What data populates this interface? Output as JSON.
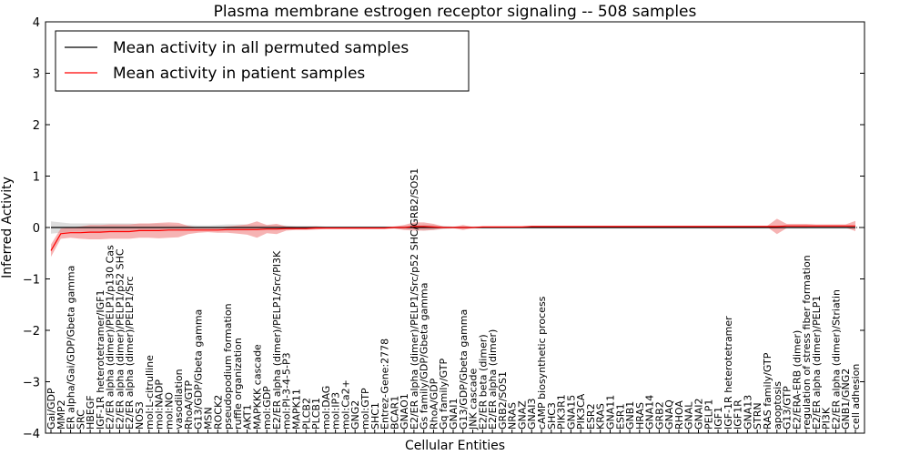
{
  "chart_data": {
    "type": "line",
    "title": "Plasma membrane estrogen receptor signaling -- 508 samples",
    "xlabel": "Cellular Entities",
    "ylabel": "Inferred Activity",
    "ylim": [
      -4,
      4
    ],
    "yticks": [
      -4,
      -3,
      -2,
      -1,
      0,
      1,
      2,
      3,
      4
    ],
    "ytick_labels": [
      "−4",
      "−3",
      "−2",
      "−1",
      "0",
      "1",
      "2",
      "3",
      "4"
    ],
    "grid": false,
    "legend_position": "top-left",
    "reference_line_y": 0,
    "categories": [
      "Gai/GDP",
      "MMP2",
      "ER alpha/Gai/GDP/Gbeta gamma",
      "SRC",
      "HBEGF",
      "IGF-1R heterotetramer/IGF1",
      "E2/ER alpha (dimer)/PELP1/p130 Cas",
      "E2/ER alpha (dimer)/PELP1/p52 SHC",
      "E2/ER alpha (dimer)/PELP1/Src",
      "NOS3",
      "mol:L-citrulline",
      "mol:NADP",
      "mol:NO",
      "vasodilation",
      "RhoA/GTP",
      "G13/GDP/Gbeta gamma",
      "MSN",
      "ROCK2",
      "pseudopodium formation",
      "ruffle organization",
      "AKT1",
      "MAPKKK cascade",
      "mol:GDP",
      "E2/ER alpha (dimer)/PELP1/Src/PI3K",
      "mol:PI-3-4-5-P3",
      "MAPK11",
      "PLCB2",
      "PLCB1",
      "mol:DAG",
      "mol:IP3",
      "mol:Ca2+",
      "GNG2",
      "mol:GTP",
      "SHC1",
      "Entrez-Gene:2778",
      "BCAR1",
      "GNAO1",
      "E2/ER alpha (dimer)/PELP1/Src/p52 SHC/GRB2/SOS1",
      "Gs family/GDP/Gbeta gamma",
      "RhoA/GDP",
      "Gq family/GTP",
      "GNAI1",
      "G13/GDP/Gbeta gamma",
      "JNK cascade",
      "E2/ER beta (dimer)",
      "E2/ER alpha (dimer)",
      "GRB2/SOS1",
      "NRAS",
      "GNAZ",
      "GNAI3",
      "cAMP biosynthetic process",
      "SHC3",
      "PIK3R1",
      "GNA15",
      "PIK3CA",
      "ESR2",
      "KRAS",
      "GNA11",
      "ESR1",
      "GNB1",
      "HRAS",
      "GNA14",
      "GRB2",
      "GNAQ",
      "RHOA",
      "GNAL",
      "GNAI2",
      "PELP1",
      "IGF1",
      "IGF-1R heterotetramer",
      "IGF1R",
      "GNA13",
      "STRN",
      "RAS family/GTP",
      "apoptosis",
      "G13/GTP",
      "E2/ERA-ERB (dimer)",
      "regulation of stress fiber formation",
      "E2/ER alpha (dimer)/PELP1",
      "PI3K",
      "E2/ER alpha (dimer)/Striatin",
      "GNB1/GNG2",
      "cell adhesion"
    ],
    "series": [
      {
        "name": "Mean activity in all permuted samples",
        "color": "#000000",
        "values": [
          0.0,
          0.0,
          0.0,
          0.0,
          0.0,
          0.0,
          0.0,
          0.0,
          0.0,
          0.0,
          0.0,
          0.0,
          0.0,
          0.0,
          0.0,
          0.0,
          0.0,
          0.0,
          0.0,
          0.0,
          0.0,
          0.0,
          0.0,
          0.0,
          0.0,
          0.0,
          0.0,
          0.0,
          0.0,
          0.0,
          0.0,
          0.0,
          0.0,
          0.0,
          0.0,
          0.0,
          0.0,
          0.0,
          0.0,
          0.0,
          0.0,
          0.0,
          0.0,
          0.0,
          0.0,
          0.0,
          0.0,
          0.0,
          0.0,
          0.0,
          0.0,
          0.0,
          0.0,
          0.0,
          0.0,
          0.0,
          0.0,
          0.0,
          0.0,
          0.0,
          0.0,
          0.0,
          0.0,
          0.0,
          0.0,
          0.0,
          0.0,
          0.0,
          0.0,
          0.0,
          0.0,
          0.0,
          0.0,
          0.0,
          0.0,
          0.0,
          0.0,
          0.0,
          0.0,
          0.0,
          0.0,
          0.0,
          0.0
        ],
        "band_halfwidth": [
          0.12,
          0.1,
          0.08,
          0.08,
          0.08,
          0.08,
          0.08,
          0.08,
          0.08,
          0.07,
          0.07,
          0.07,
          0.06,
          0.05,
          0.05,
          0.04,
          0.04,
          0.05,
          0.06,
          0.06,
          0.06,
          0.05,
          0.05,
          0.05,
          0.04,
          0.03,
          0.03,
          0.03,
          0.02,
          0.02,
          0.02,
          0.02,
          0.02,
          0.02,
          0.02,
          0.02,
          0.03,
          0.04,
          0.06,
          0.05,
          0.03,
          0.02,
          0.02,
          0.02,
          0.02,
          0.02,
          0.02,
          0.02,
          0.02,
          0.02,
          0.02,
          0.02,
          0.02,
          0.02,
          0.02,
          0.02,
          0.02,
          0.02,
          0.02,
          0.02,
          0.02,
          0.02,
          0.02,
          0.02,
          0.02,
          0.02,
          0.02,
          0.02,
          0.02,
          0.02,
          0.02,
          0.02,
          0.02,
          0.02,
          0.02,
          0.02,
          0.02,
          0.02,
          0.02,
          0.02,
          0.02,
          0.02,
          0.03
        ]
      },
      {
        "name": "Mean activity in patient samples",
        "color": "#ff0000",
        "values": [
          -0.45,
          -0.12,
          -0.1,
          -0.1,
          -0.09,
          -0.09,
          -0.08,
          -0.08,
          -0.08,
          -0.06,
          -0.06,
          -0.06,
          -0.05,
          -0.05,
          -0.05,
          -0.05,
          -0.05,
          -0.05,
          -0.04,
          -0.04,
          -0.04,
          -0.04,
          -0.03,
          -0.03,
          -0.02,
          -0.02,
          -0.02,
          -0.01,
          -0.01,
          -0.01,
          -0.01,
          -0.01,
          -0.01,
          -0.01,
          -0.01,
          0.0,
          0.0,
          0.02,
          0.02,
          0.01,
          0.0,
          0.0,
          0.0,
          0.0,
          0.01,
          0.01,
          0.01,
          0.01,
          0.01,
          0.02,
          0.02,
          0.02,
          0.02,
          0.02,
          0.02,
          0.02,
          0.02,
          0.02,
          0.02,
          0.02,
          0.02,
          0.02,
          0.02,
          0.02,
          0.02,
          0.02,
          0.02,
          0.02,
          0.02,
          0.02,
          0.02,
          0.02,
          0.02,
          0.02,
          0.02,
          0.03,
          0.03,
          0.03,
          0.03,
          0.03,
          0.03,
          0.03,
          0.03
        ],
        "band_halfwidth": [
          0.12,
          0.1,
          0.1,
          0.12,
          0.14,
          0.14,
          0.14,
          0.14,
          0.14,
          0.14,
          0.14,
          0.15,
          0.15,
          0.14,
          0.08,
          0.05,
          0.04,
          0.05,
          0.06,
          0.08,
          0.1,
          0.16,
          0.08,
          0.1,
          0.04,
          0.03,
          0.03,
          0.03,
          0.02,
          0.02,
          0.02,
          0.02,
          0.02,
          0.02,
          0.02,
          0.02,
          0.05,
          0.08,
          0.08,
          0.06,
          0.02,
          0.01,
          0.05,
          0.01,
          0.01,
          0.01,
          0.01,
          0.01,
          0.01,
          0.01,
          0.01,
          0.01,
          0.01,
          0.01,
          0.01,
          0.01,
          0.01,
          0.01,
          0.01,
          0.01,
          0.01,
          0.01,
          0.01,
          0.01,
          0.01,
          0.01,
          0.01,
          0.01,
          0.01,
          0.01,
          0.01,
          0.01,
          0.01,
          0.01,
          0.15,
          0.04,
          0.04,
          0.04,
          0.03,
          0.03,
          0.03,
          0.03,
          0.1
        ]
      }
    ]
  }
}
